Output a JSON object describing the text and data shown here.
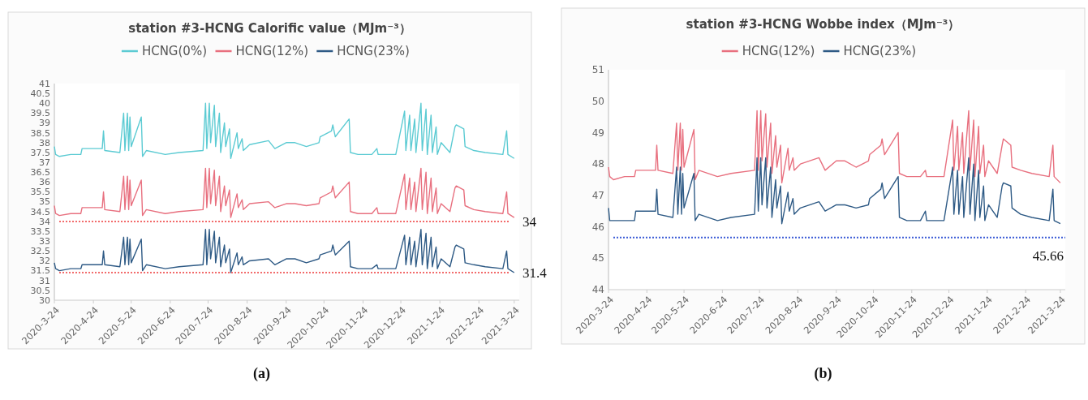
{
  "chart_data": [
    {
      "type": "line",
      "title": "station #3-HCNG Calorific value（MJm⁻³）",
      "legend": "top",
      "grid": false,
      "marker": "none",
      "line_style": "solid",
      "x": [
        "2020-03-24",
        "2020-03-25",
        "2020-03-28",
        "2020-04-06",
        "2020-04-14",
        "2020-04-15",
        "2020-05-01",
        "2020-05-02",
        "2020-05-03",
        "2020-05-15",
        "2020-05-18",
        "2020-05-19",
        "2020-05-21",
        "2020-05-22",
        "2020-05-23",
        "2020-05-24",
        "2020-06-01",
        "2020-06-02",
        "2020-06-05",
        "2020-06-20",
        "2020-07-01",
        "2020-07-20",
        "2020-07-22",
        "2020-07-23",
        "2020-07-25",
        "2020-07-26",
        "2020-07-29",
        "2020-07-30",
        "2020-08-02",
        "2020-08-03",
        "2020-08-06",
        "2020-08-07",
        "2020-08-10",
        "2020-08-11",
        "2020-08-16",
        "2020-08-17",
        "2020-08-20",
        "2020-08-21",
        "2020-08-26",
        "2020-09-10",
        "2020-09-15",
        "2020-09-24",
        "2020-10-01",
        "2020-10-10",
        "2020-10-20",
        "2020-10-21",
        "2020-10-30",
        "2020-10-31",
        "2020-11-02",
        "2020-11-13",
        "2020-11-14",
        "2020-11-20",
        "2020-12-01",
        "2020-12-05",
        "2020-12-06",
        "2020-12-20",
        "2020-12-27",
        "2020-12-28",
        "2020-12-31",
        "2021-01-01",
        "2021-01-04",
        "2021-01-05",
        "2021-01-09",
        "2021-01-10",
        "2021-01-13",
        "2021-01-14",
        "2021-01-17",
        "2021-01-18",
        "2021-01-21",
        "2021-01-22",
        "2021-01-25",
        "2021-02-01",
        "2021-02-05",
        "2021-02-06",
        "2021-02-12",
        "2021-02-13",
        "2021-02-20",
        "2021-03-01",
        "2021-03-15",
        "2021-03-18",
        "2021-03-19",
        "2021-03-24"
      ],
      "series": [
        {
          "name": "HCNG(0%)",
          "color": "#5ccbd3",
          "values": [
            37.8,
            37.4,
            37.3,
            37.4,
            37.4,
            37.7,
            37.7,
            38.6,
            37.6,
            37.5,
            39.5,
            37.6,
            39.5,
            37.6,
            39.3,
            37.8,
            39.3,
            37.3,
            37.6,
            37.4,
            37.5,
            37.6,
            40.0,
            37.7,
            40.0,
            38.0,
            39.9,
            37.8,
            39.5,
            37.5,
            39.0,
            37.8,
            38.7,
            37.2,
            38.5,
            37.7,
            38.2,
            37.6,
            37.9,
            38.1,
            37.7,
            38.0,
            38.0,
            37.8,
            38.0,
            38.3,
            38.6,
            38.9,
            38.3,
            39.2,
            37.5,
            37.4,
            37.4,
            37.7,
            37.4,
            37.4,
            39.6,
            37.6,
            39.4,
            37.6,
            39.2,
            37.5,
            40.0,
            37.6,
            39.7,
            37.4,
            39.4,
            37.5,
            38.8,
            37.4,
            38.0,
            37.5,
            38.8,
            38.9,
            38.7,
            37.8,
            37.6,
            37.5,
            37.4,
            38.6,
            37.4,
            37.2
          ]
        },
        {
          "name": "HCNG(12%)",
          "color": "#e8707f",
          "values": [
            34.8,
            34.4,
            34.3,
            34.4,
            34.4,
            34.7,
            34.7,
            35.5,
            34.6,
            34.5,
            36.3,
            34.6,
            36.3,
            34.6,
            36.1,
            34.8,
            36.1,
            34.3,
            34.6,
            34.4,
            34.5,
            34.6,
            36.7,
            34.7,
            36.7,
            34.9,
            36.6,
            34.8,
            36.3,
            34.5,
            35.8,
            34.8,
            35.6,
            34.2,
            35.4,
            34.7,
            35.1,
            34.6,
            34.9,
            35.0,
            34.7,
            34.9,
            34.9,
            34.8,
            34.9,
            35.2,
            35.5,
            35.8,
            35.2,
            36.0,
            34.5,
            34.4,
            34.4,
            34.7,
            34.4,
            34.4,
            36.4,
            34.6,
            36.2,
            34.6,
            36.0,
            34.5,
            36.7,
            34.6,
            36.5,
            34.4,
            36.2,
            34.5,
            35.7,
            34.4,
            34.9,
            34.5,
            35.7,
            35.8,
            35.6,
            34.8,
            34.6,
            34.5,
            34.4,
            35.5,
            34.4,
            34.2
          ]
        },
        {
          "name": "HCNG(23%)",
          "color": "#2e5a85",
          "values": [
            31.9,
            31.6,
            31.5,
            31.6,
            31.6,
            31.8,
            31.8,
            32.5,
            31.8,
            31.7,
            33.2,
            31.8,
            33.2,
            31.8,
            33.1,
            31.9,
            33.1,
            31.5,
            31.8,
            31.6,
            31.7,
            31.8,
            33.6,
            31.8,
            33.6,
            32.1,
            33.5,
            31.9,
            33.2,
            31.7,
            32.8,
            31.9,
            32.6,
            31.4,
            32.4,
            31.8,
            32.2,
            31.8,
            32.0,
            32.1,
            31.8,
            32.1,
            32.1,
            31.9,
            32.1,
            32.3,
            32.5,
            32.8,
            32.3,
            33.0,
            31.7,
            31.6,
            31.6,
            31.8,
            31.6,
            31.6,
            33.3,
            31.8,
            33.2,
            31.8,
            33.0,
            31.7,
            33.6,
            31.8,
            33.4,
            31.6,
            33.2,
            31.7,
            32.7,
            31.6,
            32.1,
            31.7,
            32.7,
            32.8,
            32.6,
            31.9,
            31.8,
            31.7,
            31.6,
            32.5,
            31.6,
            31.4
          ]
        }
      ],
      "xlim": [
        "2020-03-24",
        "2021-03-28"
      ],
      "xticks": [
        {
          "value": "2020-03-24",
          "label": "2020-3-24"
        },
        {
          "value": "2020-04-24",
          "label": "2020-4-24"
        },
        {
          "value": "2020-05-24",
          "label": "2020-5-24"
        },
        {
          "value": "2020-06-24",
          "label": "2020-6-24"
        },
        {
          "value": "2020-07-24",
          "label": "2020-7-24"
        },
        {
          "value": "2020-08-24",
          "label": "2020-8-24"
        },
        {
          "value": "2020-09-24",
          "label": "2020-9-24"
        },
        {
          "value": "2020-10-24",
          "label": "2020-10-24"
        },
        {
          "value": "2020-11-24",
          "label": "2020-11-24"
        },
        {
          "value": "2020-12-24",
          "label": "2020-12-24"
        },
        {
          "value": "2021-01-24",
          "label": "2021-1-24"
        },
        {
          "value": "2021-02-24",
          "label": "2021-2-24"
        },
        {
          "value": "2021-03-24",
          "label": "2021-3-24"
        }
      ],
      "ylim": [
        30,
        41
      ],
      "yticks": [
        30,
        30.5,
        31,
        31.5,
        32,
        32.5,
        33,
        33.5,
        34,
        34.5,
        35,
        35.5,
        36,
        36.5,
        37,
        37.5,
        38,
        38.5,
        39,
        39.5,
        40,
        40.5,
        41
      ],
      "ref_lines": [
        {
          "axis": "y",
          "value": 34,
          "label": "34",
          "color": "#f26b6b",
          "line_style": "dotted"
        },
        {
          "axis": "y",
          "value": 31.4,
          "label": "31.4",
          "color": "#f26b6b",
          "line_style": "dotted"
        }
      ],
      "annotations": [
        "(a)"
      ]
    },
    {
      "type": "line",
      "title": "station #3-HCNG Wobbe index（MJm⁻³）",
      "legend": "top",
      "grid": false,
      "marker": "none",
      "line_style": "solid",
      "x": [
        "2020-03-24",
        "2020-03-25",
        "2020-03-28",
        "2020-04-06",
        "2020-04-14",
        "2020-04-15",
        "2020-05-01",
        "2020-05-02",
        "2020-05-03",
        "2020-05-15",
        "2020-05-18",
        "2020-05-19",
        "2020-05-21",
        "2020-05-22",
        "2020-05-23",
        "2020-05-24",
        "2020-06-01",
        "2020-06-02",
        "2020-06-05",
        "2020-06-20",
        "2020-07-01",
        "2020-07-20",
        "2020-07-22",
        "2020-07-23",
        "2020-07-25",
        "2020-07-26",
        "2020-07-29",
        "2020-07-30",
        "2020-08-02",
        "2020-08-03",
        "2020-08-06",
        "2020-08-07",
        "2020-08-10",
        "2020-08-11",
        "2020-08-16",
        "2020-08-17",
        "2020-08-20",
        "2020-08-21",
        "2020-08-26",
        "2020-09-10",
        "2020-09-15",
        "2020-09-24",
        "2020-10-01",
        "2020-10-10",
        "2020-10-20",
        "2020-10-21",
        "2020-10-30",
        "2020-10-31",
        "2020-11-02",
        "2020-11-13",
        "2020-11-14",
        "2020-11-20",
        "2020-12-01",
        "2020-12-05",
        "2020-12-06",
        "2020-12-20",
        "2020-12-27",
        "2020-12-28",
        "2020-12-31",
        "2021-01-01",
        "2021-01-04",
        "2021-01-05",
        "2021-01-09",
        "2021-01-10",
        "2021-01-13",
        "2021-01-14",
        "2021-01-17",
        "2021-01-18",
        "2021-01-21",
        "2021-01-22",
        "2021-01-25",
        "2021-02-01",
        "2021-02-05",
        "2021-02-06",
        "2021-02-12",
        "2021-02-13",
        "2021-02-20",
        "2021-03-01",
        "2021-03-15",
        "2021-03-18",
        "2021-03-19",
        "2021-03-24"
      ],
      "series": [
        {
          "name": "HCNG(12%)",
          "color": "#e8707f",
          "values": [
            47.9,
            47.6,
            47.5,
            47.6,
            47.6,
            47.8,
            47.8,
            48.6,
            47.8,
            47.7,
            49.3,
            47.8,
            49.3,
            47.8,
            49.1,
            47.9,
            49.1,
            47.5,
            47.8,
            47.6,
            47.7,
            47.8,
            49.7,
            47.8,
            49.7,
            48.1,
            49.6,
            47.9,
            49.3,
            47.7,
            48.9,
            47.9,
            48.6,
            47.4,
            48.5,
            47.8,
            48.2,
            47.8,
            48.0,
            48.2,
            47.8,
            48.1,
            48.1,
            47.9,
            48.1,
            48.3,
            48.6,
            48.8,
            48.3,
            49.0,
            47.7,
            47.6,
            47.6,
            47.8,
            47.6,
            47.6,
            49.4,
            47.8,
            49.2,
            47.8,
            49.0,
            47.7,
            49.7,
            47.8,
            49.4,
            47.6,
            49.2,
            47.7,
            48.6,
            47.6,
            48.1,
            47.7,
            48.6,
            48.8,
            48.6,
            47.9,
            47.8,
            47.7,
            47.6,
            48.6,
            47.6,
            47.4
          ]
        },
        {
          "name": "HCNG(23%)",
          "color": "#2e5a85",
          "values": [
            46.6,
            46.2,
            46.2,
            46.2,
            46.2,
            46.5,
            46.5,
            47.2,
            46.4,
            46.3,
            47.9,
            46.4,
            47.9,
            46.4,
            47.7,
            46.6,
            47.7,
            46.2,
            46.4,
            46.2,
            46.3,
            46.4,
            48.2,
            46.5,
            48.2,
            46.7,
            48.2,
            46.6,
            47.9,
            46.3,
            47.5,
            46.6,
            47.3,
            46.1,
            47.1,
            46.5,
            46.9,
            46.4,
            46.6,
            46.8,
            46.5,
            46.7,
            46.7,
            46.6,
            46.7,
            46.9,
            47.2,
            47.4,
            46.9,
            47.6,
            46.3,
            46.2,
            46.2,
            46.5,
            46.2,
            46.2,
            47.9,
            46.4,
            47.8,
            46.4,
            47.6,
            46.3,
            48.2,
            46.4,
            48.0,
            46.2,
            47.8,
            46.3,
            47.3,
            46.2,
            46.7,
            46.3,
            47.3,
            47.4,
            47.3,
            46.6,
            46.4,
            46.3,
            46.2,
            47.2,
            46.2,
            46.1
          ]
        }
      ],
      "xlim": [
        "2020-03-24",
        "2021-03-28"
      ],
      "xticks": [
        {
          "value": "2020-03-24",
          "label": "2020-3-24"
        },
        {
          "value": "2020-04-24",
          "label": "2020-4-24"
        },
        {
          "value": "2020-05-24",
          "label": "2020-5-24"
        },
        {
          "value": "2020-06-24",
          "label": "2020-6-24"
        },
        {
          "value": "2020-07-24",
          "label": "2020-7-24"
        },
        {
          "value": "2020-08-24",
          "label": "2020-8-24"
        },
        {
          "value": "2020-09-24",
          "label": "2020-9-24"
        },
        {
          "value": "2020-10-24",
          "label": "2020-10-24"
        },
        {
          "value": "2020-11-24",
          "label": "2020-11-24"
        },
        {
          "value": "2020-12-24",
          "label": "2020-12-24"
        },
        {
          "value": "2021-01-24",
          "label": "2021-1-24"
        },
        {
          "value": "2021-02-24",
          "label": "2021-2-24"
        },
        {
          "value": "2021-03-24",
          "label": "2021-3-24"
        }
      ],
      "ylim": [
        44,
        51
      ],
      "yticks": [
        44,
        45,
        46,
        47,
        48,
        49,
        50,
        51
      ],
      "ref_lines": [
        {
          "axis": "y",
          "value": 45.66,
          "label": "45.66",
          "color": "#3b5bd6",
          "line_style": "dotted"
        }
      ],
      "annotations": [
        "(b)"
      ]
    }
  ]
}
